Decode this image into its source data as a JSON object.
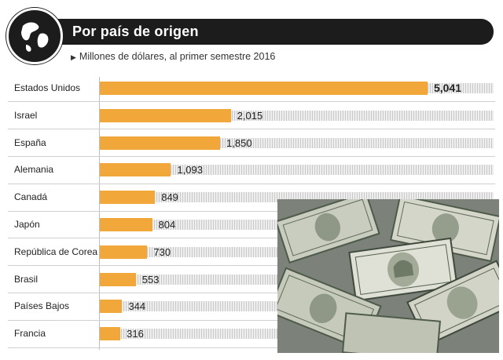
{
  "header": {
    "title": "Por país de origen",
    "subtitle": "Millones de dólares, al primer semestre 2016"
  },
  "colors": {
    "bar": "#f2a73a",
    "header": "#1c1c1c"
  },
  "icons": {
    "globe": "globe-icon",
    "bullet": "triangle-bullet-icon"
  },
  "chart_data": {
    "type": "bar",
    "orientation": "horizontal",
    "categories": [
      "Estados Unidos",
      "Israel",
      "España",
      "Alemania",
      "Canadá",
      "Japón",
      "República de Corea",
      "Brasil",
      "Países Bajos",
      "Francia"
    ],
    "values": [
      5041,
      2015,
      1850,
      1093,
      849,
      804,
      730,
      553,
      344,
      316
    ],
    "value_labels": [
      "5,041",
      "2,015",
      "1,850",
      "1,093",
      "849",
      "804",
      "730",
      "553",
      "344",
      "316"
    ],
    "title": "Por país de origen",
    "subtitle": "Millones de dólares, al primer semestre 2016",
    "xlim": [
      0,
      5041
    ],
    "grid": false,
    "legend": "none"
  }
}
